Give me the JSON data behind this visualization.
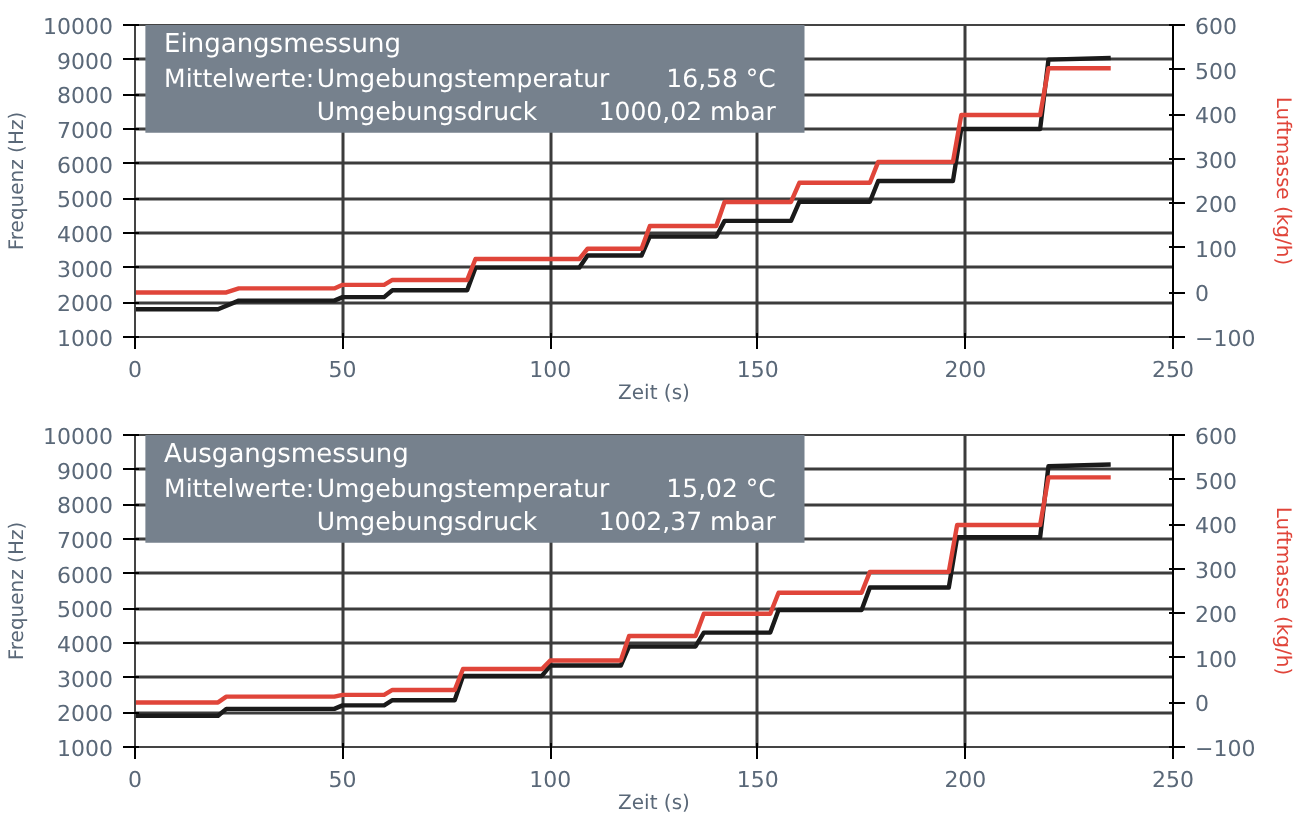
{
  "chart_data": [
    {
      "type": "line",
      "title": "Eingangsmessung",
      "xlabel": "Zeit (s)",
      "ylabel": "Frequenz (Hz)",
      "y2label": "Luftmasse (kg/h)",
      "annotations": [
        "Mittelwerte:",
        "Umgebungstemperatur",
        "16,58  °C",
        "Umgebungsdruck",
        "1000,02  mbar"
      ],
      "xlim": [
        0,
        250
      ],
      "xticks": [
        0,
        50,
        100,
        150,
        200,
        250
      ],
      "ylim": [
        1000,
        10000
      ],
      "yticks": [
        1000,
        2000,
        3000,
        4000,
        5000,
        6000,
        7000,
        8000,
        9000,
        10000
      ],
      "y2lim": [
        -100,
        600
      ],
      "y2ticks": [
        -100,
        0,
        100,
        200,
        300,
        400,
        500,
        600
      ],
      "grid": true,
      "line_style": "solid",
      "series": [
        {
          "color": "#1a1a1a",
          "x": [
            0,
            20,
            25,
            48,
            50,
            60,
            62,
            80,
            82,
            107,
            109,
            122,
            124,
            140,
            142,
            158,
            160,
            177,
            179,
            197,
            199,
            218,
            220,
            235
          ],
          "values": [
            1800,
            1800,
            2050,
            2050,
            2150,
            2150,
            2350,
            2350,
            3000,
            3000,
            3350,
            3350,
            3900,
            3900,
            4350,
            4350,
            4900,
            4900,
            5500,
            5500,
            7000,
            7000,
            9000,
            9050
          ]
        },
        {
          "color": "#e0453a",
          "axis": "y2",
          "x": [
            0,
            22,
            25,
            48,
            50,
            60,
            62,
            80,
            82,
            107,
            109,
            122,
            124,
            140,
            142,
            158,
            160,
            177,
            179,
            197,
            199,
            218,
            220,
            235
          ],
          "values": [
            0,
            0,
            9,
            9,
            17,
            17,
            28,
            28,
            75,
            75,
            98,
            98,
            149,
            149,
            203,
            203,
            246,
            246,
            293,
            293,
            398,
            398,
            503,
            503
          ]
        }
      ]
    },
    {
      "type": "line",
      "title": "Ausgangsmessung",
      "xlabel": "Zeit (s)",
      "ylabel": "Frequenz (Hz)",
      "y2label": "Luftmasse (kg/h)",
      "annotations": [
        "Mittelwerte:",
        "Umgebungstemperatur",
        "15,02  °C",
        "Umgebungsdruck",
        "1002,37  mbar"
      ],
      "xlim": [
        0,
        250
      ],
      "xticks": [
        0,
        50,
        100,
        150,
        200,
        250
      ],
      "ylim": [
        1000,
        10000
      ],
      "yticks": [
        1000,
        2000,
        3000,
        4000,
        5000,
        6000,
        7000,
        8000,
        9000,
        10000
      ],
      "y2lim": [
        -100,
        600
      ],
      "y2ticks": [
        -100,
        0,
        100,
        200,
        300,
        400,
        500,
        600
      ],
      "grid": true,
      "line_style": "solid",
      "series": [
        {
          "color": "#1a1a1a",
          "x": [
            0,
            20,
            22,
            48,
            50,
            60,
            62,
            77,
            79,
            98,
            100,
            117,
            119,
            135,
            137,
            153,
            155,
            175,
            177,
            196,
            198,
            218,
            220,
            235
          ],
          "values": [
            1900,
            1900,
            2100,
            2100,
            2200,
            2200,
            2350,
            2350,
            3050,
            3050,
            3350,
            3350,
            3900,
            3900,
            4300,
            4300,
            4950,
            4950,
            5600,
            5600,
            7050,
            7050,
            9100,
            9150
          ]
        },
        {
          "color": "#e0453a",
          "axis": "y2",
          "x": [
            0,
            20,
            22,
            48,
            50,
            60,
            62,
            77,
            79,
            98,
            100,
            117,
            119,
            135,
            137,
            153,
            155,
            175,
            177,
            196,
            198,
            218,
            220,
            235
          ],
          "values": [
            0,
            0,
            13,
            13,
            17,
            17,
            28,
            28,
            75,
            75,
            94,
            94,
            149,
            149,
            199,
            199,
            246,
            246,
            293,
            293,
            398,
            398,
            505,
            505
          ]
        }
      ]
    }
  ]
}
